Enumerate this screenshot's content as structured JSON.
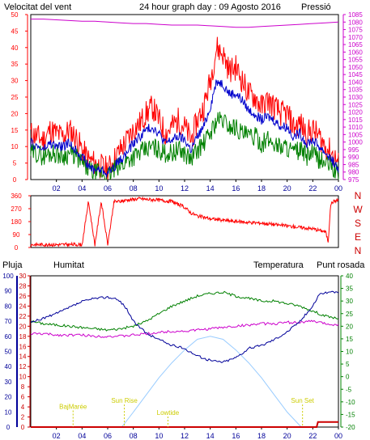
{
  "colors": {
    "wind": "#ff0000",
    "gust": "#0000cc",
    "pressure": "#cc00cc",
    "humidity": "#000099",
    "temperature": "#008000",
    "dewpoint": "#cc00cc",
    "rain": "#cc0000",
    "sun": "#99ccff",
    "annotation": "#cccc00",
    "axis": "#000000",
    "direction_letters": "#cc0000"
  },
  "chart_data": [
    {
      "id": "wind-pressure",
      "type": "line",
      "title": "24 hour graph day : 09 Agosto 2016",
      "left_label": "Velocitat del vent",
      "right_label": "Pressió",
      "ylim": [
        0,
        50
      ],
      "y2lim": [
        975,
        1085
      ],
      "yticks": [
        0,
        5,
        10,
        15,
        20,
        25,
        30,
        35,
        40,
        45,
        50
      ],
      "y2ticks": [
        975,
        980,
        985,
        990,
        995,
        1000,
        1005,
        1010,
        1015,
        1020,
        1025,
        1030,
        1035,
        1040,
        1045,
        1050,
        1055,
        1060,
        1065,
        1070,
        1075,
        1080,
        1085
      ],
      "xlim": [
        0,
        24
      ],
      "xtick_labels": [
        "02",
        "04",
        "06",
        "08",
        "10",
        "12",
        "14",
        "16",
        "18",
        "20",
        "22",
        "00"
      ],
      "series": [
        {
          "key": "gust",
          "x": [
            0,
            0.5,
            1,
            1.5,
            2,
            2.5,
            3,
            3.5,
            4,
            4.5,
            5,
            5.5,
            6,
            6.5,
            7,
            7.5,
            8,
            8.5,
            9,
            9.5,
            10,
            10.5,
            11,
            11.5,
            12,
            12.5,
            13,
            13.5,
            14,
            14.5,
            15,
            15.5,
            16,
            16.5,
            17,
            17.5,
            18,
            18.5,
            19,
            19.5,
            20,
            20.5,
            21,
            21.5,
            22,
            22.5,
            23,
            23.5,
            24
          ],
          "values": [
            14,
            13,
            12,
            15,
            14,
            13,
            15,
            13,
            9,
            6,
            5,
            4,
            3,
            6,
            9,
            12,
            15,
            17,
            20,
            22,
            18,
            14,
            16,
            18,
            16,
            12,
            18,
            22,
            30,
            40,
            38,
            33,
            34,
            30,
            26,
            25,
            22,
            24,
            22,
            20,
            20,
            16,
            17,
            14,
            15,
            13,
            10,
            8,
            5
          ]
        },
        {
          "key": "wind",
          "x": [
            0,
            0.5,
            1,
            1.5,
            2,
            2.5,
            3,
            3.5,
            4,
            4.5,
            5,
            5.5,
            6,
            6.5,
            7,
            7.5,
            8,
            8.5,
            9,
            9.5,
            10,
            10.5,
            11,
            11.5,
            12,
            12.5,
            13,
            13.5,
            14,
            14.5,
            15,
            15.5,
            16,
            16.5,
            17,
            17.5,
            18,
            18.5,
            19,
            19.5,
            20,
            20.5,
            21,
            21.5,
            22,
            22.5,
            23,
            23.5,
            24
          ],
          "values": [
            11,
            10,
            9,
            11,
            10,
            10,
            11,
            9,
            7,
            4,
            3,
            3,
            2,
            4,
            6,
            8,
            11,
            13,
            15,
            16,
            14,
            11,
            12,
            13,
            12,
            9,
            13,
            16,
            22,
            30,
            29,
            26,
            26,
            24,
            21,
            20,
            18,
            19,
            18,
            16,
            16,
            13,
            14,
            11,
            12,
            10,
            8,
            6,
            3
          ]
        },
        {
          "key": "mean",
          "x": [
            0,
            0.5,
            1,
            1.5,
            2,
            2.5,
            3,
            3.5,
            4,
            4.5,
            5,
            5.5,
            6,
            6.5,
            7,
            7.5,
            8,
            8.5,
            9,
            9.5,
            10,
            10.5,
            11,
            11.5,
            12,
            12.5,
            13,
            13.5,
            14,
            14.5,
            15,
            15.5,
            16,
            16.5,
            17,
            17.5,
            18,
            18.5,
            19,
            19.5,
            20,
            20.5,
            21,
            21.5,
            22,
            22.5,
            23,
            23.5,
            24
          ],
          "values": [
            8,
            8,
            7,
            8,
            8,
            7,
            8,
            7,
            5,
            3,
            2,
            2,
            1,
            3,
            4,
            6,
            7,
            8,
            9,
            10,
            9,
            8,
            8,
            9,
            8,
            6,
            9,
            11,
            14,
            18,
            18,
            16,
            16,
            14,
            13,
            13,
            11,
            12,
            11,
            10,
            10,
            8,
            9,
            7,
            8,
            6,
            5,
            4,
            1
          ]
        },
        {
          "key": "pressure",
          "x": [
            0,
            1,
            2,
            3,
            4,
            5,
            6,
            7,
            8,
            9,
            10,
            11,
            12,
            13,
            14,
            15,
            16,
            17,
            18,
            19,
            20,
            21,
            22,
            23,
            24
          ],
          "values": [
            1082,
            1082,
            1081.5,
            1081,
            1080.5,
            1080.5,
            1080,
            1079.5,
            1079,
            1079,
            1078.5,
            1078,
            1078,
            1078,
            1077.5,
            1077,
            1076.5,
            1076.5,
            1077,
            1077.5,
            1078,
            1078.5,
            1079,
            1079.5,
            1080
          ]
        }
      ]
    },
    {
      "id": "wind-direction",
      "type": "line",
      "ylim": [
        0,
        360
      ],
      "yticks": [
        0,
        90,
        180,
        270,
        360
      ],
      "xlim": [
        0,
        24
      ],
      "compass_letters": [
        "N",
        "W",
        "S",
        "E",
        "N"
      ],
      "series": [
        {
          "key": "direction",
          "x": [
            0,
            1,
            2,
            3,
            4,
            4.5,
            5,
            5.5,
            6,
            6.5,
            7,
            7.5,
            8,
            8.5,
            9,
            10,
            11,
            12,
            12.5,
            13,
            13.5,
            14,
            14.5,
            15,
            16,
            17,
            18,
            19,
            20,
            21,
            22,
            22.5,
            23,
            23.2,
            23.4,
            23.6,
            24
          ],
          "values": [
            20,
            20,
            20,
            20,
            20,
            320,
            20,
            320,
            20,
            320,
            320,
            330,
            335,
            340,
            335,
            330,
            320,
            280,
            240,
            220,
            210,
            200,
            195,
            190,
            180,
            175,
            170,
            160,
            150,
            140,
            130,
            120,
            110,
            40,
            300,
            320,
            330
          ]
        }
      ]
    },
    {
      "id": "humidity-temp",
      "type": "line",
      "left_labels": [
        "Pluja",
        "Humitat"
      ],
      "right_labels": [
        "Temperatura",
        "Punt rosada"
      ],
      "rain_ylim": [
        0,
        30
      ],
      "rain_yticks": [
        0,
        2,
        4,
        6,
        8,
        10,
        12,
        14,
        16,
        18,
        20,
        22,
        24,
        26,
        28,
        30
      ],
      "humidity_ylim": [
        0,
        100
      ],
      "humidity_yticks": [
        0,
        10,
        20,
        30,
        40,
        50,
        60,
        70,
        80,
        90,
        100
      ],
      "temp_ylim": [
        -20,
        40
      ],
      "temp_yticks": [
        -20,
        -15,
        -10,
        -5,
        0,
        5,
        10,
        15,
        20,
        25,
        30,
        35,
        40
      ],
      "xlim": [
        0,
        24
      ],
      "xtick_labels": [
        "02",
        "04",
        "06",
        "08",
        "10",
        "12",
        "14",
        "16",
        "18",
        "20",
        "22",
        "00"
      ],
      "annotations": [
        {
          "text": "BajMarée",
          "x": 3.3,
          "y_frac": 0.12
        },
        {
          "text": "Sun Rise",
          "x": 7.3,
          "y_frac": 0.16
        },
        {
          "text": "Lowtide",
          "x": 10.7,
          "y_frac": 0.08
        },
        {
          "text": "Sun Set",
          "x": 21.2,
          "y_frac": 0.16
        }
      ],
      "series": [
        {
          "key": "humidity",
          "x": [
            0,
            1,
            2,
            3,
            4,
            5,
            6,
            6.5,
            7,
            7.5,
            8,
            9,
            10,
            11,
            12,
            13,
            14,
            15,
            16,
            17,
            18,
            19,
            20,
            21,
            22,
            22.5,
            23,
            24
          ],
          "values": [
            69,
            72,
            75,
            79,
            83,
            85,
            86,
            85,
            83,
            78,
            70,
            62,
            58,
            54,
            52,
            47,
            44,
            43,
            46,
            52,
            54,
            58,
            63,
            70,
            80,
            88,
            89,
            89
          ]
        },
        {
          "key": "temperature",
          "x": [
            0,
            1,
            2,
            3,
            4,
            5,
            6,
            7,
            8,
            9,
            10,
            11,
            12,
            13,
            14,
            15,
            16,
            17,
            18,
            19,
            20,
            21,
            22,
            23,
            24
          ],
          "values": [
            22,
            21,
            20.5,
            20,
            19.5,
            19,
            18.5,
            19,
            20,
            22,
            25,
            28,
            30,
            32,
            33,
            33.5,
            32,
            31,
            30,
            30,
            29,
            28,
            26,
            24,
            23
          ]
        },
        {
          "key": "dewpoint",
          "x": [
            0,
            1,
            2,
            3,
            4,
            5,
            6,
            7,
            8,
            9,
            10,
            11,
            12,
            13,
            14,
            15,
            16,
            17,
            18,
            19,
            20,
            21,
            22,
            23,
            24
          ],
          "values": [
            17,
            17,
            16.5,
            16.5,
            16.5,
            16,
            16,
            16,
            16.5,
            17,
            17.5,
            18,
            18,
            18.5,
            19,
            19.5,
            20,
            20.5,
            21,
            21,
            21.5,
            21.5,
            22,
            21,
            20.5
          ]
        },
        {
          "key": "sun",
          "x": [
            7.1,
            8,
            9,
            10,
            11,
            12,
            13,
            14,
            15,
            16,
            17,
            18,
            19,
            20,
            21.1
          ],
          "values": [
            0,
            3.5,
            7.5,
            11.5,
            15,
            18,
            20.5,
            21.2,
            20.5,
            18,
            15,
            11.5,
            7.5,
            3.5,
            0
          ]
        },
        {
          "key": "rain",
          "x": [
            0,
            22.3,
            22.4,
            24
          ],
          "values": [
            0,
            0,
            1,
            1
          ]
        }
      ]
    }
  ]
}
